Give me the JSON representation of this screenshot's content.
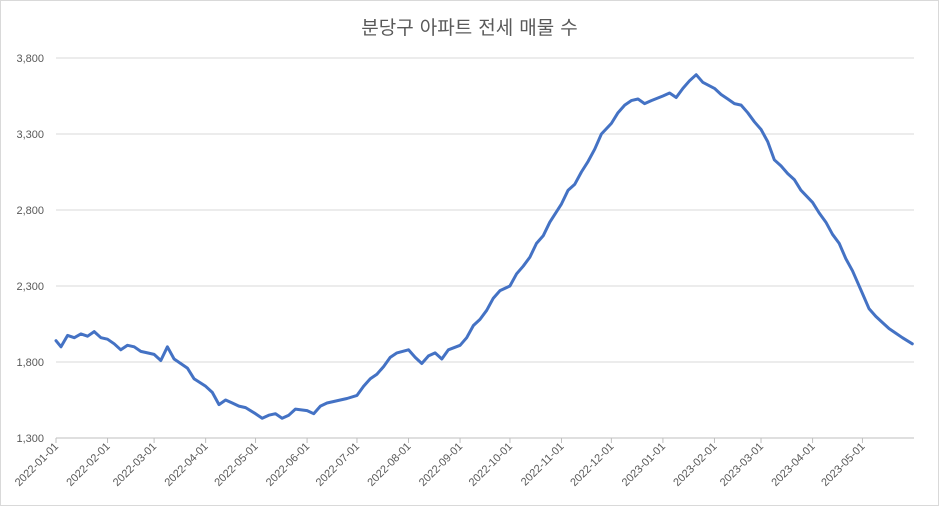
{
  "chart_data": {
    "type": "line",
    "title": "분당구 아파트 전세 매물 수",
    "xlabel": "",
    "ylabel": "",
    "ylim": [
      1300,
      3800
    ],
    "yticks": [
      1300,
      1800,
      2300,
      2800,
      3300,
      3800
    ],
    "ytick_labels": [
      "1,300",
      "1,800",
      "2,300",
      "2,800",
      "3,300",
      "3,800"
    ],
    "xticks": [
      "2022-01-01",
      "2022-02-01",
      "2022-03-01",
      "2022-04-01",
      "2022-05-01",
      "2022-06-01",
      "2022-07-01",
      "2022-08-01",
      "2022-09-01",
      "2022-10-01",
      "2022-11-01",
      "2022-12-01",
      "2023-01-01",
      "2023-02-01",
      "2023-03-01",
      "2023-04-01",
      "2023-05-01"
    ],
    "x_end": "2023-05-31",
    "grid": true,
    "legend": "none",
    "line_color": "#4472c4",
    "series": [
      {
        "x": [
          "2022-01-01",
          "2022-01-04",
          "2022-01-08",
          "2022-01-12",
          "2022-01-16",
          "2022-01-20",
          "2022-01-24",
          "2022-01-28",
          "2022-02-01",
          "2022-02-05",
          "2022-02-09",
          "2022-02-13",
          "2022-02-17",
          "2022-02-21",
          "2022-02-25",
          "2022-03-01",
          "2022-03-05",
          "2022-03-09",
          "2022-03-13",
          "2022-03-17",
          "2022-03-21",
          "2022-03-25",
          "2022-04-01",
          "2022-04-05",
          "2022-04-09",
          "2022-04-13",
          "2022-04-17",
          "2022-04-21",
          "2022-04-25",
          "2022-05-01",
          "2022-05-05",
          "2022-05-09",
          "2022-05-13",
          "2022-05-17",
          "2022-05-21",
          "2022-05-25",
          "2022-06-01",
          "2022-06-05",
          "2022-06-09",
          "2022-06-13",
          "2022-06-17",
          "2022-06-21",
          "2022-06-25",
          "2022-07-01",
          "2022-07-05",
          "2022-07-09",
          "2022-07-13",
          "2022-07-17",
          "2022-07-21",
          "2022-07-25",
          "2022-08-01",
          "2022-08-05",
          "2022-08-09",
          "2022-08-13",
          "2022-08-17",
          "2022-08-21",
          "2022-08-25",
          "2022-09-01",
          "2022-09-05",
          "2022-09-09",
          "2022-09-13",
          "2022-09-17",
          "2022-09-21",
          "2022-09-25",
          "2022-10-01",
          "2022-10-05",
          "2022-10-09",
          "2022-10-13",
          "2022-10-17",
          "2022-10-21",
          "2022-10-25",
          "2022-11-01",
          "2022-11-05",
          "2022-11-09",
          "2022-11-13",
          "2022-11-17",
          "2022-11-21",
          "2022-11-25",
          "2022-12-01",
          "2022-12-05",
          "2022-12-09",
          "2022-12-13",
          "2022-12-17",
          "2022-12-21",
          "2022-12-25",
          "2023-01-01",
          "2023-01-05",
          "2023-01-09",
          "2023-01-13",
          "2023-01-17",
          "2023-01-21",
          "2023-01-25",
          "2023-02-01",
          "2023-02-05",
          "2023-02-09",
          "2023-02-13",
          "2023-02-17",
          "2023-02-21",
          "2023-02-25",
          "2023-03-01",
          "2023-03-05",
          "2023-03-09",
          "2023-03-13",
          "2023-03-17",
          "2023-03-21",
          "2023-03-25",
          "2023-04-01",
          "2023-04-05",
          "2023-04-09",
          "2023-04-13",
          "2023-04-17",
          "2023-04-21",
          "2023-04-25",
          "2023-05-01",
          "2023-05-05",
          "2023-05-09",
          "2023-05-13",
          "2023-05-17",
          "2023-05-21",
          "2023-05-25",
          "2023-05-31"
        ],
        "values": [
          1940,
          1900,
          1975,
          1960,
          1985,
          1970,
          2000,
          1960,
          1950,
          1920,
          1880,
          1910,
          1900,
          1870,
          1860,
          1850,
          1810,
          1900,
          1820,
          1790,
          1760,
          1690,
          1640,
          1600,
          1520,
          1550,
          1530,
          1510,
          1500,
          1460,
          1430,
          1450,
          1460,
          1430,
          1450,
          1490,
          1480,
          1460,
          1510,
          1530,
          1540,
          1550,
          1560,
          1580,
          1640,
          1690,
          1720,
          1770,
          1830,
          1860,
          1880,
          1830,
          1790,
          1840,
          1860,
          1820,
          1880,
          1910,
          1960,
          2040,
          2080,
          2140,
          2220,
          2270,
          2300,
          2380,
          2430,
          2490,
          2580,
          2630,
          2720,
          2840,
          2930,
          2970,
          3050,
          3120,
          3200,
          3300,
          3370,
          3440,
          3490,
          3520,
          3530,
          3500,
          3520,
          3550,
          3570,
          3540,
          3600,
          3650,
          3690,
          3640,
          3600,
          3560,
          3530,
          3500,
          3490,
          3440,
          3380,
          3330,
          3250,
          3130,
          3090,
          3040,
          3000,
          2930,
          2850,
          2780,
          2720,
          2640,
          2580,
          2480,
          2400,
          2250,
          2150,
          2100,
          2060,
          2020,
          1990,
          1960,
          1920
        ]
      }
    ]
  }
}
